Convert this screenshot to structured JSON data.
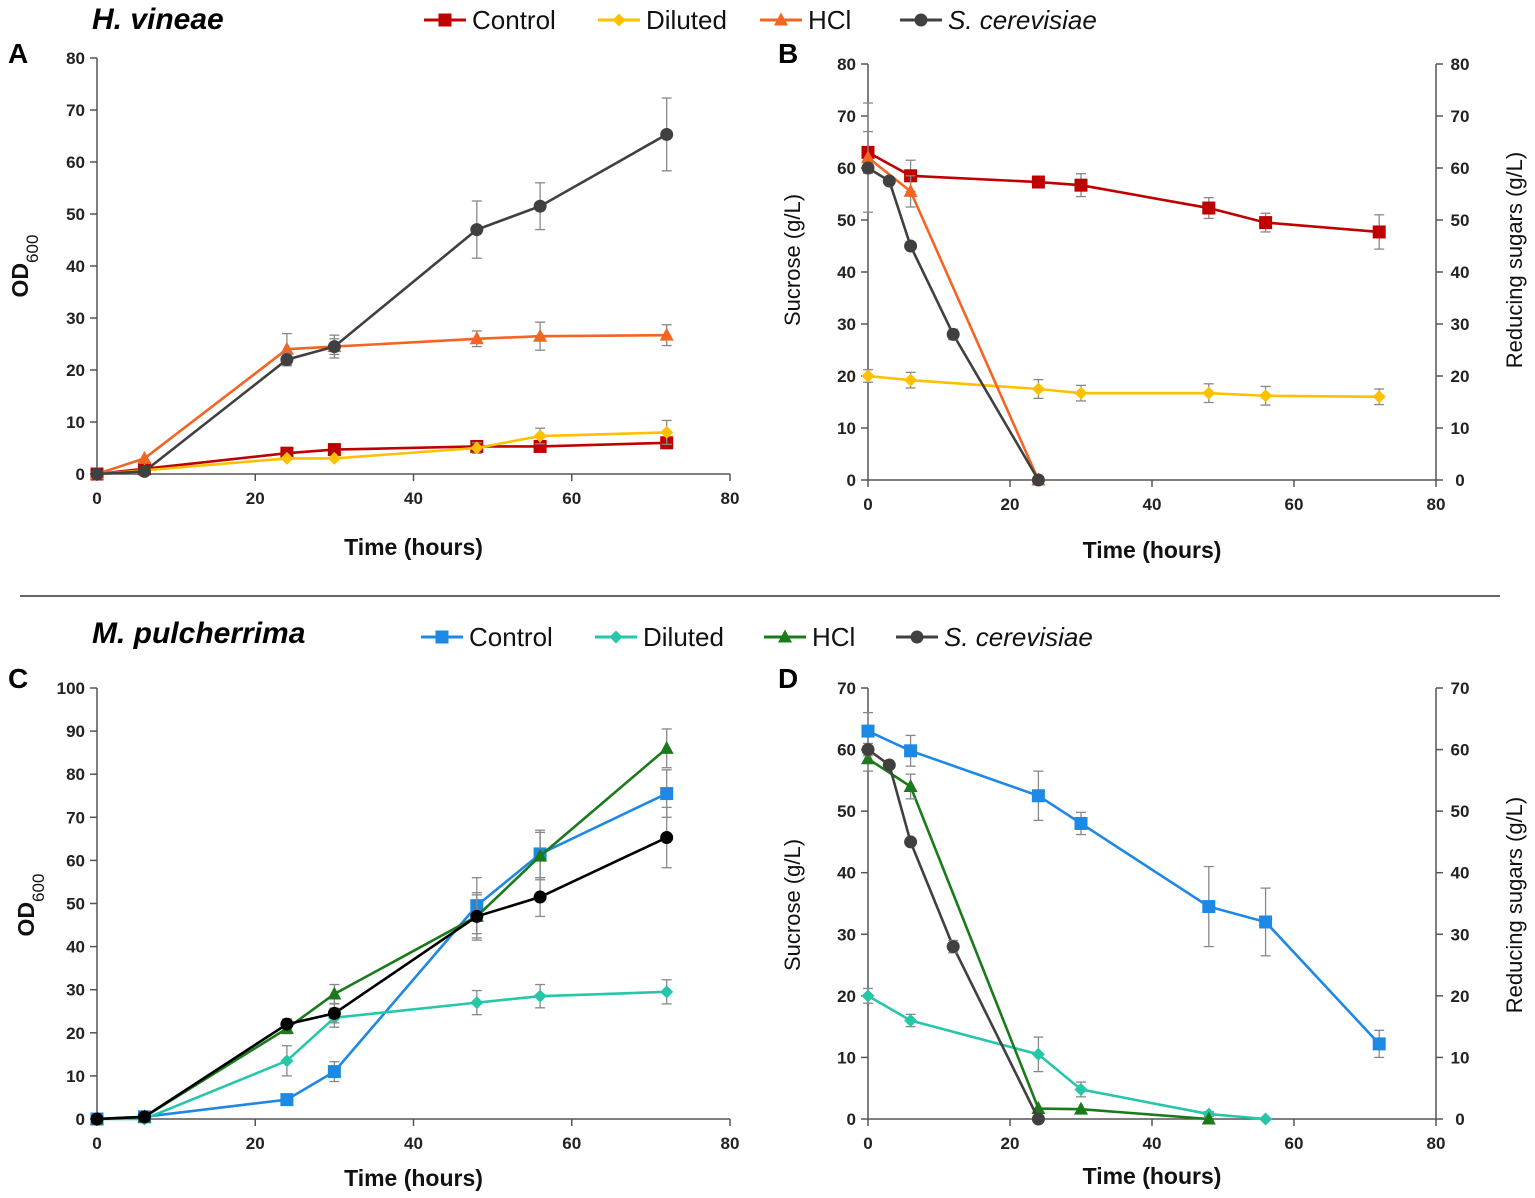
{
  "organisms": {
    "top": "H. vineae",
    "bottom": "M. pulcherrima"
  },
  "legends": {
    "top": [
      {
        "label": "Control",
        "italic": false,
        "color": "#C00000",
        "marker": "square"
      },
      {
        "label": "Diluted",
        "italic": false,
        "color": "#FFC000",
        "marker": "diamond"
      },
      {
        "label": "HCl",
        "italic": false,
        "color": "#F26522",
        "marker": "triangle"
      },
      {
        "label": "S. cerevisiae",
        "italic": true,
        "color": "#404040",
        "marker": "circle"
      }
    ],
    "bottom": [
      {
        "label": "Control",
        "italic": false,
        "color": "#1E88E5",
        "marker": "square"
      },
      {
        "label": "Diluted",
        "italic": false,
        "color": "#26C6A8",
        "marker": "diamond"
      },
      {
        "label": "HCl",
        "italic": false,
        "color": "#1B7A1B",
        "marker": "triangle"
      },
      {
        "label": "S. cerevisiae",
        "italic": true,
        "color": "#404040",
        "marker": "circle"
      }
    ]
  },
  "chart_data": [
    {
      "panel": "A",
      "type": "line",
      "xlabel": "Time (hours)",
      "ylabel": "OD",
      "ylabel_sub": "600",
      "xlim": [
        0,
        80
      ],
      "ylim": [
        0,
        80
      ],
      "xticks": [
        0,
        20,
        40,
        60,
        80
      ],
      "yticks": [
        0,
        10,
        20,
        30,
        40,
        50,
        60,
        70,
        80
      ],
      "series": [
        {
          "name": "Control",
          "color": "#C00000",
          "marker": "square",
          "x": [
            0,
            6,
            24,
            30,
            48,
            56,
            72
          ],
          "y": [
            0,
            1,
            4,
            4.7,
            5.3,
            5.3,
            6
          ],
          "err": [
            0,
            0,
            0,
            0,
            0.7,
            0.7,
            0.9
          ]
        },
        {
          "name": "Diluted",
          "color": "#FFC000",
          "marker": "diamond",
          "x": [
            0,
            6,
            24,
            30,
            48,
            56,
            72
          ],
          "y": [
            0,
            0.7,
            3,
            3,
            5,
            7.3,
            8
          ],
          "err": [
            0,
            0,
            0,
            0,
            1,
            1.5,
            2.3
          ]
        },
        {
          "name": "HCl",
          "color": "#F26522",
          "marker": "triangle",
          "x": [
            0,
            6,
            24,
            30,
            48,
            56,
            72
          ],
          "y": [
            0,
            3,
            24,
            24.5,
            26,
            26.5,
            26.7
          ],
          "err": [
            0,
            0,
            3,
            1.5,
            1.5,
            2.7,
            2
          ]
        },
        {
          "name": "S. cerevisiae",
          "color": "#404040",
          "marker": "circle",
          "x": [
            0,
            6,
            24,
            30,
            48,
            56,
            72
          ],
          "y": [
            0,
            0.5,
            22,
            24.5,
            47,
            51.5,
            65.3
          ],
          "err": [
            0,
            0,
            1.2,
            2.2,
            5.5,
            4.5,
            7
          ]
        }
      ]
    },
    {
      "panel": "B",
      "type": "line",
      "xlabel": "Time (hours)",
      "ylabel": "Sucrose (g/L)",
      "y2label": "Reducing sugars (g/L)",
      "xlim": [
        0,
        80
      ],
      "ylim": [
        0,
        80
      ],
      "xticks": [
        0,
        20,
        40,
        60,
        80
      ],
      "yticks": [
        0,
        10,
        20,
        30,
        40,
        50,
        60,
        70,
        80
      ],
      "series": [
        {
          "name": "Control",
          "color": "#C00000",
          "marker": "square",
          "x": [
            0,
            6,
            24,
            30,
            48,
            56,
            72
          ],
          "y": [
            63,
            58.5,
            57.3,
            56.7,
            52.3,
            49.5,
            47.7
          ],
          "err": [
            4,
            3,
            0.8,
            2.2,
            2,
            1.8,
            3.3
          ]
        },
        {
          "name": "Diluted",
          "color": "#FFC000",
          "marker": "diamond",
          "x": [
            0,
            6,
            24,
            30,
            48,
            56,
            72
          ],
          "y": [
            20,
            19.2,
            17.5,
            16.7,
            16.7,
            16.2,
            16
          ],
          "err": [
            1.2,
            1.5,
            1.8,
            1.5,
            1.8,
            1.8,
            1.5
          ]
        },
        {
          "name": "HCl",
          "color": "#F26522",
          "marker": "triangle",
          "x": [
            0,
            6,
            24
          ],
          "y": [
            62,
            55.5,
            0
          ],
          "err": [
            10.5,
            3,
            0
          ]
        },
        {
          "name": "S. cerevisiae",
          "color": "#404040",
          "marker": "circle",
          "x": [
            0,
            3,
            6,
            12,
            24
          ],
          "y": [
            60,
            57.5,
            45,
            28,
            0
          ],
          "err": [
            1,
            0,
            0,
            1,
            0
          ]
        }
      ]
    },
    {
      "panel": "C",
      "type": "line",
      "xlabel": "Time (hours)",
      "ylabel": "OD",
      "ylabel_sub": "600",
      "xlim": [
        0,
        80
      ],
      "ylim": [
        0,
        100
      ],
      "xticks": [
        0,
        20,
        40,
        60,
        80
      ],
      "yticks": [
        0,
        10,
        20,
        30,
        40,
        50,
        60,
        70,
        80,
        90,
        100
      ],
      "series": [
        {
          "name": "Control",
          "color": "#1E88E5",
          "marker": "square",
          "x": [
            0,
            6,
            24,
            30,
            48,
            56,
            72
          ],
          "y": [
            0,
            0.5,
            4.5,
            11,
            49.5,
            61.5,
            75.5
          ],
          "err": [
            0,
            0,
            0,
            2.3,
            6.5,
            5.5,
            5.5
          ]
        },
        {
          "name": "Diluted",
          "color": "#26C6A8",
          "marker": "diamond",
          "x": [
            0,
            6,
            24,
            30,
            48,
            56,
            72
          ],
          "y": [
            0,
            0,
            13.5,
            23.5,
            27,
            28.5,
            29.5
          ],
          "err": [
            0,
            0,
            3.5,
            2.2,
            2.8,
            2.7,
            2.8
          ]
        },
        {
          "name": "HCl",
          "color": "#1B7A1B",
          "marker": "triangle",
          "x": [
            0,
            6,
            24,
            30,
            48,
            56,
            72
          ],
          "y": [
            0,
            0.5,
            21,
            29,
            47,
            61,
            86
          ],
          "err": [
            0,
            0,
            1.2,
            2.2,
            5,
            5.5,
            4.5
          ]
        },
        {
          "name": "S. cerevisiae",
          "color": "#000000",
          "marker": "circle",
          "x": [
            0,
            6,
            24,
            30,
            48,
            56,
            72
          ],
          "y": [
            0,
            0.5,
            22,
            24.5,
            47,
            51.5,
            65.3
          ],
          "err": [
            0,
            0,
            1.2,
            2.2,
            5.5,
            4.5,
            7
          ]
        }
      ]
    },
    {
      "panel": "D",
      "type": "line",
      "xlabel": "Time (hours)",
      "ylabel": "Sucrose (g/L)",
      "y2label": "Reducing sugars (g/L)",
      "xlim": [
        0,
        80
      ],
      "ylim": [
        0,
        70
      ],
      "xticks": [
        0,
        20,
        40,
        60,
        80
      ],
      "yticks": [
        0,
        10,
        20,
        30,
        40,
        50,
        60,
        70
      ],
      "series": [
        {
          "name": "Control",
          "color": "#1E88E5",
          "marker": "square",
          "x": [
            0,
            6,
            24,
            30,
            48,
            56,
            72
          ],
          "y": [
            63,
            59.8,
            52.5,
            48,
            34.5,
            32,
            12.2
          ],
          "err": [
            3,
            2.5,
            4,
            1.8,
            6.5,
            5.5,
            2.2
          ]
        },
        {
          "name": "Diluted",
          "color": "#26C6A8",
          "marker": "diamond",
          "x": [
            0,
            6,
            24,
            30,
            48,
            56
          ],
          "y": [
            20,
            16,
            10.5,
            4.8,
            0.8,
            0
          ],
          "err": [
            1.2,
            1,
            2.8,
            1.2,
            0.4,
            0
          ]
        },
        {
          "name": "HCl",
          "color": "#1B7A1B",
          "marker": "triangle",
          "x": [
            0,
            6,
            24,
            30,
            48
          ],
          "y": [
            58.5,
            54,
            1.7,
            1.6,
            0
          ],
          "err": [
            2,
            2,
            0,
            0,
            0
          ]
        },
        {
          "name": "S. cerevisiae",
          "color": "#404040",
          "marker": "circle",
          "x": [
            0,
            3,
            6,
            12,
            24
          ],
          "y": [
            60,
            57.5,
            45,
            28,
            0
          ],
          "err": [
            1,
            0,
            0,
            1,
            0
          ]
        }
      ]
    }
  ]
}
